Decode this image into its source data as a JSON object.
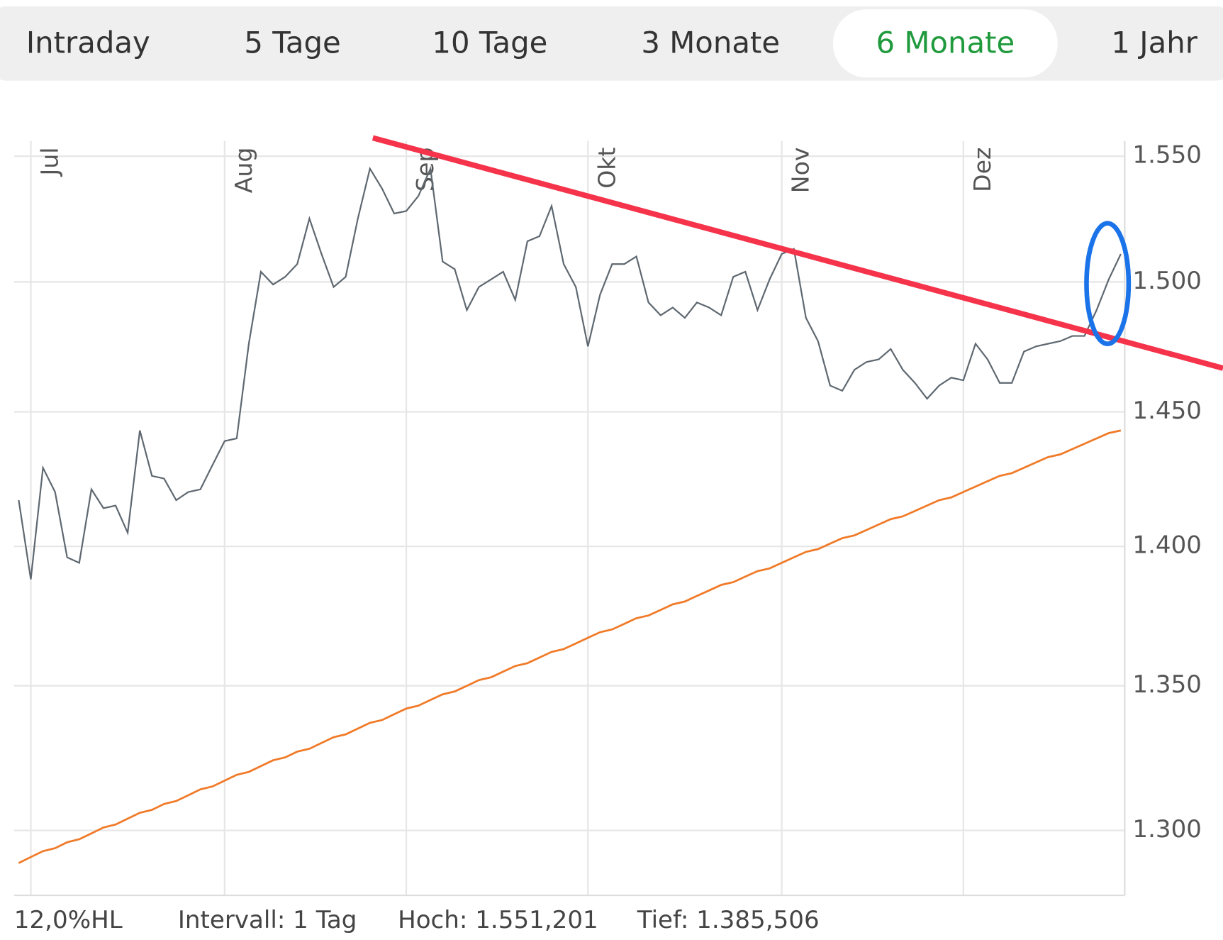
{
  "tabs": [
    {
      "label": "Intraday",
      "active": false
    },
    {
      "label": "5 Tage",
      "active": false
    },
    {
      "label": "10 Tage",
      "active": false
    },
    {
      "label": "3 Monate",
      "active": false
    },
    {
      "label": "6 Monate",
      "active": true
    },
    {
      "label": "1 Jahr",
      "active": false
    }
  ],
  "chart_data": {
    "type": "line",
    "log_scale": true,
    "grid": true,
    "categories": [
      null,
      "Jul",
      null,
      null,
      null,
      null,
      null,
      null,
      null,
      null,
      null,
      null,
      null,
      null,
      null,
      null,
      null,
      "Aug",
      null,
      null,
      null,
      null,
      null,
      null,
      null,
      null,
      null,
      null,
      null,
      null,
      null,
      null,
      "Sep",
      null,
      null,
      null,
      null,
      null,
      null,
      null,
      null,
      null,
      null,
      null,
      null,
      null,
      null,
      "Okt",
      null,
      null,
      null,
      null,
      null,
      null,
      null,
      null,
      null,
      null,
      null,
      null,
      null,
      null,
      null,
      "Nov",
      null,
      null,
      null,
      null,
      null,
      null,
      null,
      null,
      null,
      null,
      null,
      null,
      null,
      null,
      "Dez",
      null,
      null,
      null,
      null,
      null,
      null,
      null,
      null,
      null,
      null,
      null,
      null,
      null
    ],
    "series": [
      {
        "color": "#5f6870",
        "values": [
          1417,
          1388,
          1429,
          1420,
          1396,
          1394,
          1421,
          1414,
          1415,
          1405,
          1443,
          1426,
          1425,
          1417,
          1420,
          1421,
          1430,
          1439,
          1440,
          1476,
          1504,
          1499,
          1502,
          1507,
          1525,
          1511,
          1498,
          1502,
          1525,
          1545,
          1537,
          1527,
          1528,
          1534,
          1545,
          1508,
          1505,
          1489,
          1498,
          1501,
          1504,
          1493,
          1516,
          1518,
          1530,
          1507,
          1498,
          1475,
          1495,
          1507,
          1507,
          1510,
          1492,
          1487,
          1490,
          1486,
          1492,
          1490,
          1487,
          1502,
          1504,
          1489,
          1501,
          1511,
          1513,
          1486,
          1477,
          1460,
          1458,
          1466,
          1469,
          1470,
          1474,
          1466,
          1461,
          1455,
          1460,
          1463,
          1462,
          1476,
          1470,
          1461,
          1461,
          1473,
          1475,
          1476,
          1477,
          1479,
          1479,
          1489,
          1501,
          1511
        ]
      },
      {
        "color": "#f07a28",
        "values": [
          1289,
          1291,
          1293,
          1294,
          1296,
          1297,
          1299,
          1301,
          1302,
          1304,
          1306,
          1307,
          1309,
          1310,
          1312,
          1314,
          1315,
          1317,
          1319,
          1320,
          1322,
          1324,
          1325,
          1327,
          1328,
          1330,
          1332,
          1333,
          1335,
          1337,
          1338,
          1340,
          1342,
          1343,
          1345,
          1347,
          1348,
          1350,
          1352,
          1353,
          1355,
          1357,
          1358,
          1360,
          1362,
          1363,
          1365,
          1367,
          1369,
          1370,
          1372,
          1374,
          1375,
          1377,
          1379,
          1380,
          1382,
          1384,
          1386,
          1387,
          1389,
          1391,
          1392,
          1394,
          1396,
          1398,
          1399,
          1401,
          1403,
          1404,
          1406,
          1408,
          1410,
          1411,
          1413,
          1415,
          1417,
          1418,
          1420,
          1422,
          1424,
          1426,
          1427,
          1429,
          1431,
          1433,
          1434,
          1436,
          1438,
          1440,
          1442,
          1443
        ]
      }
    ],
    "ylim": [
      1280,
      1560
    ],
    "yticks": [
      {
        "value": 1300,
        "label": "1.300"
      },
      {
        "value": 1350,
        "label": "1.350"
      },
      {
        "value": 1400,
        "label": "1.400"
      },
      {
        "value": 1450,
        "label": "1.450"
      },
      {
        "value": 1500,
        "label": "1.500"
      },
      {
        "value": 1550,
        "label": "1.550"
      }
    ],
    "footer": [
      "12,0%HL",
      "Intervall: 1 Tag",
      "Hoch: 1.551,201",
      "Tief: 1.385,506"
    ]
  }
}
